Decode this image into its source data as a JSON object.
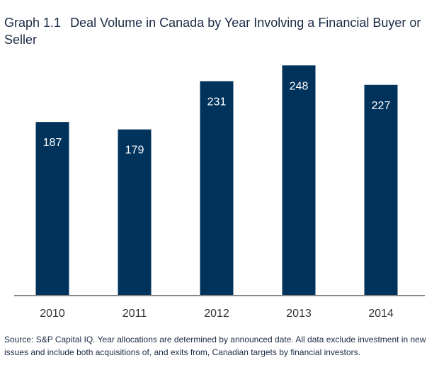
{
  "title": {
    "label": "Graph 1.1",
    "text": "Deal Volume in Canada by Year Involving a Financial Buyer or Seller"
  },
  "colors": {
    "bar": "#00335c",
    "bar_label": "#ffffff",
    "axis": "#888888",
    "tick_label": "#333333"
  },
  "chart_data": {
    "type": "bar",
    "categories": [
      "2010",
      "2011",
      "2012",
      "2013",
      "2014"
    ],
    "values": [
      187,
      179,
      231,
      248,
      227
    ],
    "title": "Graph 1.1  Deal Volume in Canada by Year Involving a Financial Buyer or Seller",
    "xlabel": "",
    "ylabel": "",
    "ylim": [
      0,
      265
    ],
    "grid": false,
    "data_labels": "inside-top"
  },
  "source": "Source: S&P Capital IQ. Year allocations are determined by announced date. All data exclude investment in new issues and include both acquisitions of, and exits from, Canadian targets by financial investors."
}
